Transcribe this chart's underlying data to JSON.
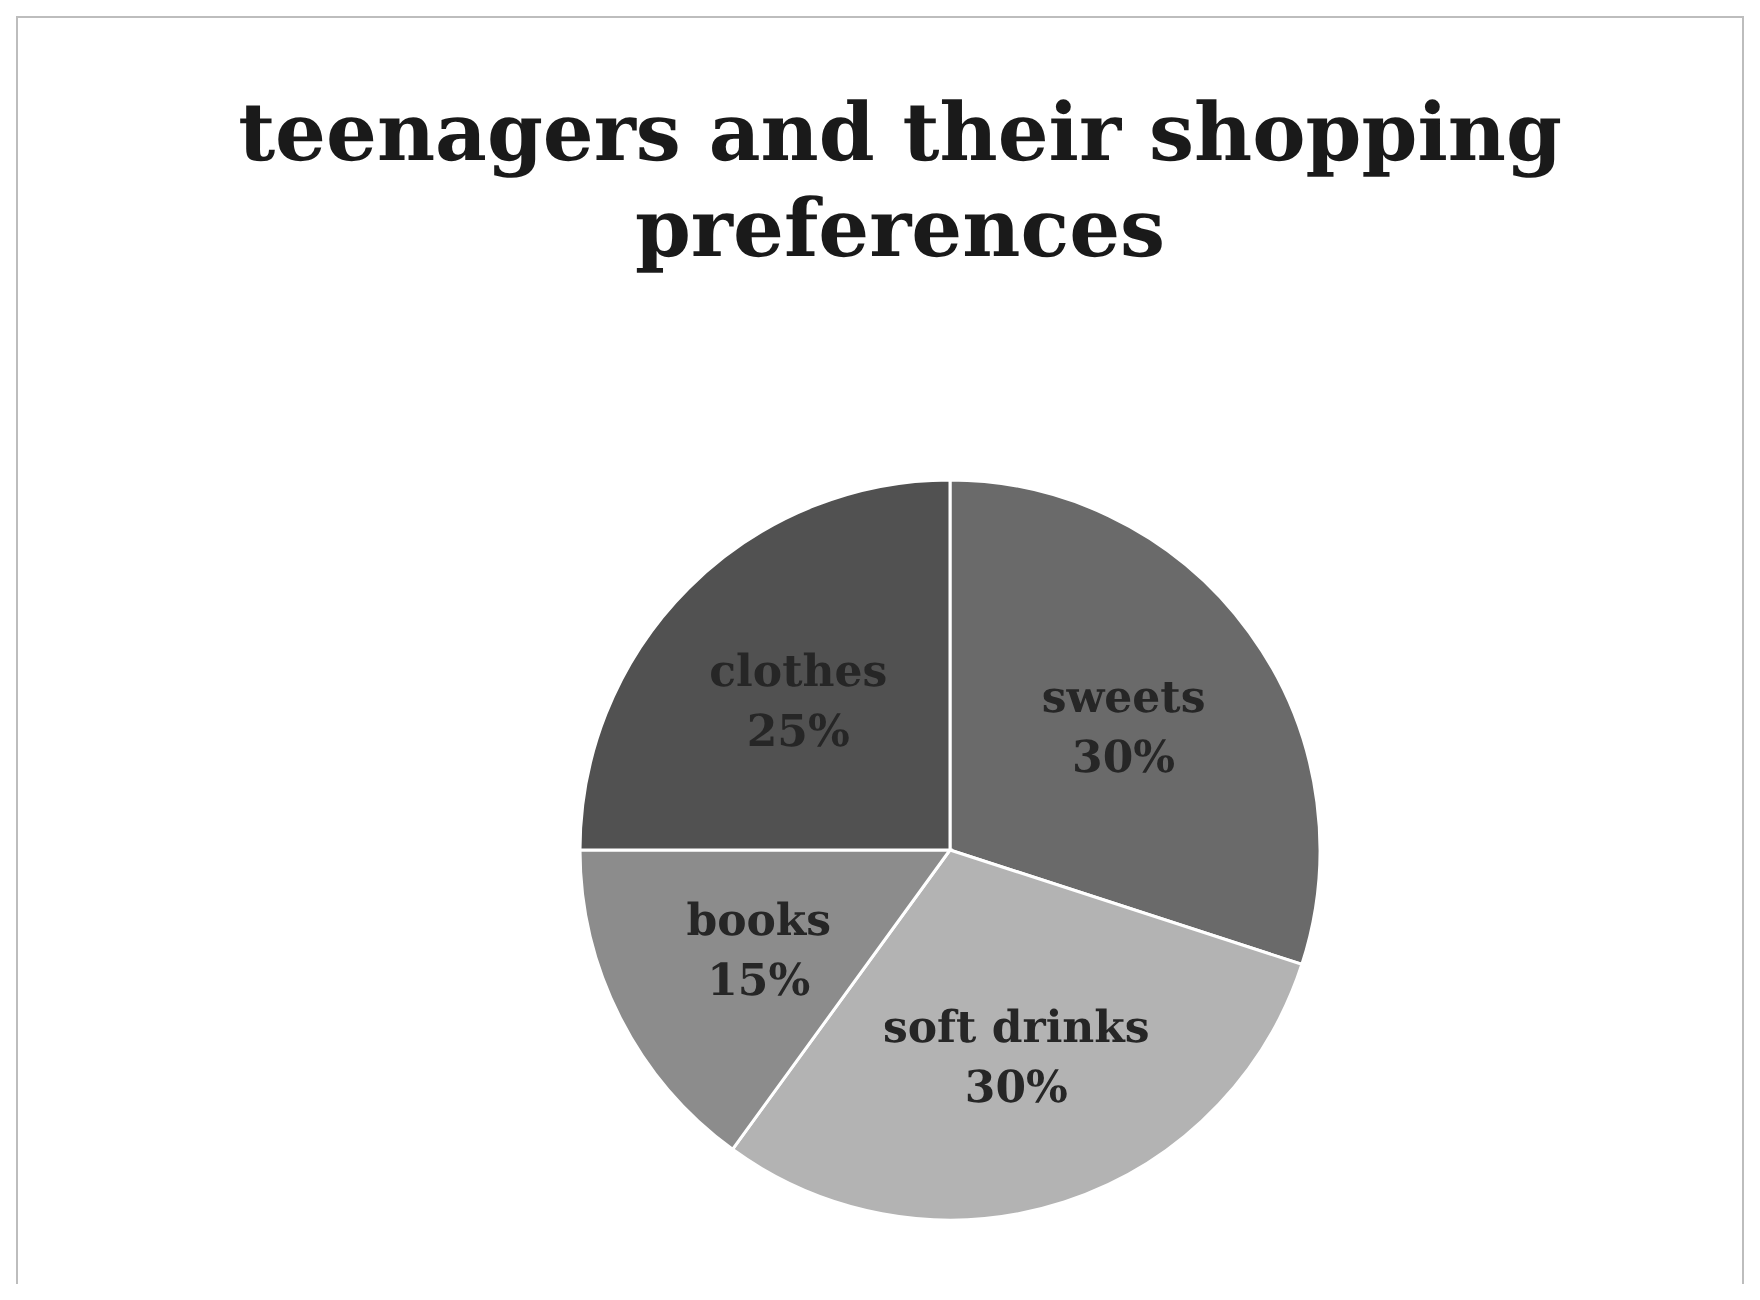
{
  "chart_data": {
    "type": "pie",
    "title": "teenagers and their shopping preferences",
    "categories": [
      "sweets",
      "soft drinks",
      "books",
      "clothes"
    ],
    "values": [
      30,
      30,
      15,
      25
    ],
    "colors": [
      "#6a6a6a",
      "#b3b3b3",
      "#8c8c8c",
      "#515151"
    ],
    "value_labels": [
      "30%",
      "30%",
      "15%",
      "25%"
    ]
  }
}
